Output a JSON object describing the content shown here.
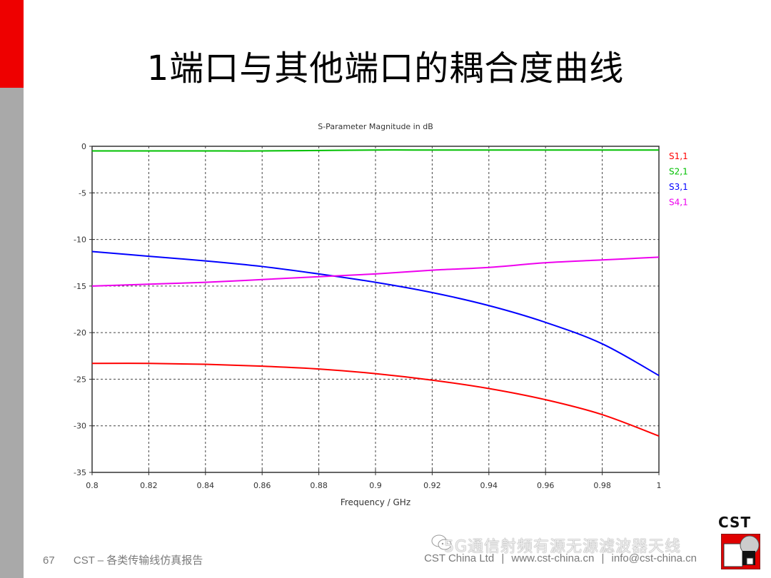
{
  "slide": {
    "title": "1端口与其他端口的耦合度曲线",
    "page_number": "67",
    "footer_left": "CST – 各类传输线仿真报告",
    "footer_company": "CST China Ltd",
    "footer_web": "www.cst-china.cn",
    "footer_email": "info@cst-china.cn",
    "footer_sep": "|",
    "watermark": "5G通信射频有源无源滤波器天线",
    "logo_text": "CST",
    "accent_red": "#ee0000",
    "side_gray": "#a9a9a9"
  },
  "chart_data": {
    "type": "line",
    "title": "S-Parameter Magnitude in dB",
    "xlabel": "Frequency / GHz",
    "ylabel": "",
    "xlim": [
      0.8,
      1.0
    ],
    "ylim": [
      -35,
      0
    ],
    "xticks": [
      0.8,
      0.82,
      0.84,
      0.86,
      0.88,
      0.9,
      0.92,
      0.94,
      0.96,
      0.98,
      1
    ],
    "xtick_labels": [
      "0.8",
      "0.82",
      "0.84",
      "0.86",
      "0.88",
      "0.9",
      "0.92",
      "0.94",
      "0.96",
      "0.98",
      "1"
    ],
    "yticks": [
      0,
      -5,
      -10,
      -15,
      -20,
      -25,
      -30,
      -35
    ],
    "ytick_labels": [
      "0",
      "-5",
      "-10",
      "-15",
      "-20",
      "-25",
      "-30",
      "-35"
    ],
    "grid": true,
    "legend_position": "right-top",
    "x": [
      0.8,
      0.82,
      0.84,
      0.86,
      0.88,
      0.9,
      0.92,
      0.94,
      0.96,
      0.98,
      1.0
    ],
    "series": [
      {
        "name": "S1,1",
        "color": "#ff0000",
        "values": [
          -23.3,
          -23.3,
          -23.4,
          -23.6,
          -23.9,
          -24.4,
          -25.1,
          -26.0,
          -27.2,
          -28.8,
          -31.1
        ]
      },
      {
        "name": "S2,1",
        "color": "#00c000",
        "values": [
          -0.5,
          -0.5,
          -0.5,
          -0.5,
          -0.45,
          -0.4,
          -0.4,
          -0.4,
          -0.4,
          -0.4,
          -0.4
        ]
      },
      {
        "name": "S3,1",
        "color": "#0000ff",
        "values": [
          -11.3,
          -11.8,
          -12.3,
          -12.9,
          -13.7,
          -14.6,
          -15.7,
          -17.1,
          -18.9,
          -21.2,
          -24.6
        ]
      },
      {
        "name": "S4,1",
        "color": "#ee00ee",
        "values": [
          -15.0,
          -14.8,
          -14.6,
          -14.3,
          -14.0,
          -13.7,
          -13.3,
          -13.0,
          -12.5,
          -12.2,
          -11.9
        ]
      }
    ]
  }
}
